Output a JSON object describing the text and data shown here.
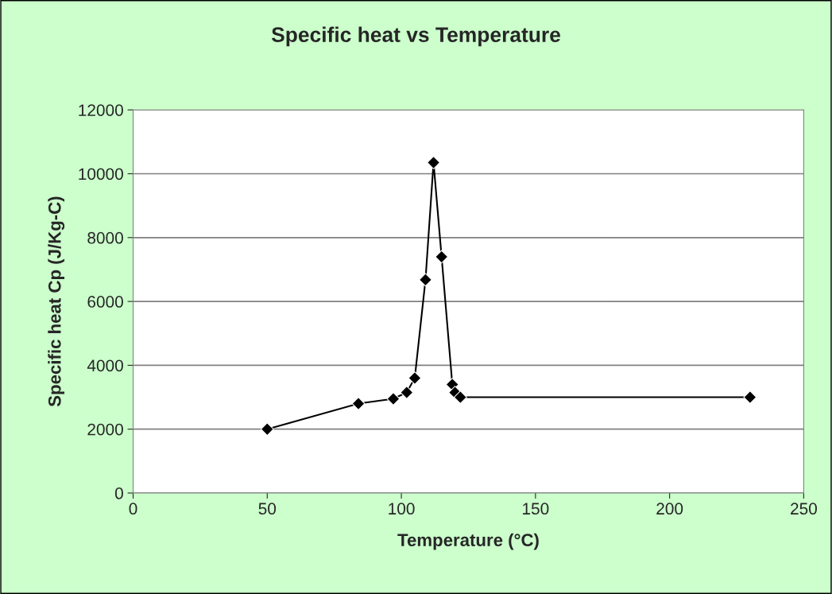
{
  "chart_data": {
    "type": "line",
    "title": "Specific heat vs Temperature",
    "xlabel": "Temperature (°C)",
    "ylabel": "Specific heat Cp (J/Kg-C)",
    "x": [
      50,
      84,
      97,
      102,
      105,
      109,
      112,
      115,
      119,
      120,
      122,
      230
    ],
    "series": [
      {
        "color": "#000000",
        "values": [
          2000,
          2800,
          2950,
          3150,
          3600,
          6680,
          10350,
          7400,
          3400,
          3150,
          3000,
          3000
        ]
      }
    ],
    "xlim": [
      0,
      250
    ],
    "xticks": [
      0,
      50,
      100,
      150,
      200,
      250
    ],
    "ylim": [
      0,
      12000
    ],
    "yticks": [
      0,
      2000,
      4000,
      6000,
      8000,
      10000,
      12000
    ],
    "grid": "y",
    "marker": "diamond",
    "line_style": "solid"
  }
}
